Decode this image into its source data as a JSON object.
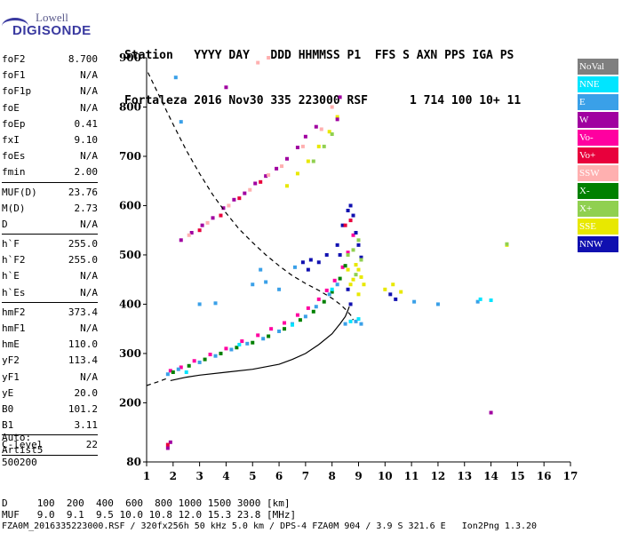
{
  "logo": {
    "line1": "Lowell",
    "line2": "DIGISONDE"
  },
  "header": {
    "labels": [
      "Station",
      "YYYY",
      "DAY",
      "DDD",
      "HHMMSS",
      "P1",
      "FFS",
      "S",
      "AXN",
      "PPS",
      "IGA",
      "PS"
    ],
    "values": [
      "Fortaleza",
      "2016",
      "Nov30",
      "335",
      "223000",
      "RSF",
      "1",
      "714",
      "100",
      "10+",
      "11"
    ]
  },
  "params": {
    "group1": [
      {
        "name": "foF2",
        "value": "8.700"
      },
      {
        "name": "foF1",
        "value": "N/A"
      },
      {
        "name": "foF1p",
        "value": "N/A"
      },
      {
        "name": "foE",
        "value": "N/A"
      },
      {
        "name": "foEp",
        "value": "0.41"
      },
      {
        "name": "fxI",
        "value": "9.10"
      },
      {
        "name": "foEs",
        "value": "N/A"
      },
      {
        "name": "fmin",
        "value": "2.00"
      }
    ],
    "group2": [
      {
        "name": "MUF(D)",
        "value": "23.76"
      },
      {
        "name": "M(D)",
        "value": "2.73"
      },
      {
        "name": "D",
        "value": "N/A"
      }
    ],
    "group3": [
      {
        "name": "h`F",
        "value": "255.0"
      },
      {
        "name": "h`F2",
        "value": "255.0"
      },
      {
        "name": "h`E",
        "value": "N/A"
      },
      {
        "name": "h`Es",
        "value": "N/A"
      }
    ],
    "group4": [
      {
        "name": "hmF2",
        "value": "373.4"
      },
      {
        "name": "hmF1",
        "value": "N/A"
      },
      {
        "name": "hmE",
        "value": "110.0"
      },
      {
        "name": "yF2",
        "value": "113.4"
      },
      {
        "name": "yF1",
        "value": "N/A"
      },
      {
        "name": "yE",
        "value": "20.0"
      },
      {
        "name": "B0",
        "value": "101.2"
      },
      {
        "name": "B1",
        "value": "3.11"
      }
    ],
    "group5": [
      {
        "name": "C-level",
        "value": "22"
      }
    ]
  },
  "auto": {
    "line1": "Auto:",
    "line2": "Artist5",
    "line3": "500200"
  },
  "legend": [
    {
      "label": "NoVal",
      "color": "#7f7f7f"
    },
    {
      "label": "NNE",
      "color": "#00e5ff"
    },
    {
      "label": "E",
      "color": "#3aa0e8"
    },
    {
      "label": "W",
      "color": "#a000a0"
    },
    {
      "label": "Vo-",
      "color": "#ff00a0"
    },
    {
      "label": "Vo+",
      "color": "#e8003c"
    },
    {
      "label": "SSW",
      "color": "#ffb0b0"
    },
    {
      "label": "X-",
      "color": "#008000"
    },
    {
      "label": "X+",
      "color": "#90d050"
    },
    {
      "label": "SSE",
      "color": "#e8e800"
    },
    {
      "label": "NNW",
      "color": "#1010b0"
    }
  ],
  "footer": {
    "line1": "D     100  200  400  600  800 1000 1500 3000 [km]",
    "line2": "MUF   9.0  9.1  9.5 10.0 10.8 12.0 15.3 23.8 [MHz]",
    "line3": "FZA0M_2016335223000.RSF / 320fx256h 50 kHz 5.0 km / DPS-4 FZA0M 904 / 3.9 S 321.6 E   Ion2Png 1.3.20"
  },
  "chart_data": {
    "type": "scatter",
    "title": "",
    "xlabel": "",
    "ylabel": "",
    "xlim": [
      1,
      17
    ],
    "ylim": [
      80,
      900
    ],
    "x_ticks": [
      1,
      2,
      3,
      4,
      5,
      6,
      7,
      8,
      9,
      10,
      11,
      12,
      13,
      14,
      15,
      16,
      17
    ],
    "y_ticks": [
      80,
      200,
      300,
      400,
      500,
      600,
      700,
      800,
      900
    ],
    "grid": false,
    "legend_position": "right",
    "series": [
      {
        "color": "#ff00a0",
        "points": [
          [
            1.9,
            265
          ],
          [
            2.3,
            272
          ],
          [
            2.8,
            285
          ],
          [
            3.4,
            298
          ],
          [
            4.0,
            310
          ],
          [
            4.6,
            325
          ],
          [
            5.2,
            337
          ],
          [
            5.7,
            350
          ],
          [
            6.2,
            362
          ],
          [
            6.7,
            378
          ],
          [
            7.1,
            392
          ],
          [
            7.5,
            410
          ],
          [
            7.8,
            428
          ],
          [
            8.1,
            448
          ],
          [
            8.4,
            475
          ],
          [
            8.6,
            505
          ],
          [
            8.8,
            540
          ]
        ]
      },
      {
        "color": "#008000",
        "points": [
          [
            2.0,
            262
          ],
          [
            2.6,
            275
          ],
          [
            3.2,
            288
          ],
          [
            3.8,
            300
          ],
          [
            4.4,
            312
          ],
          [
            5.0,
            322
          ],
          [
            5.6,
            335
          ],
          [
            6.2,
            350
          ],
          [
            6.8,
            368
          ],
          [
            7.3,
            385
          ],
          [
            7.7,
            405
          ],
          [
            8.0,
            425
          ],
          [
            8.3,
            452
          ],
          [
            8.5,
            478
          ]
        ]
      },
      {
        "color": "#3aa0e8",
        "points": [
          [
            1.8,
            258
          ],
          [
            2.2,
            268
          ],
          [
            3.0,
            282
          ],
          [
            3.6,
            295
          ],
          [
            4.2,
            308
          ],
          [
            4.8,
            320
          ],
          [
            5.4,
            330
          ],
          [
            6.0,
            345
          ],
          [
            6.5,
            360
          ],
          [
            7.0,
            375
          ],
          [
            7.4,
            395
          ],
          [
            7.9,
            420
          ],
          [
            8.2,
            440
          ],
          [
            8.5,
            360
          ],
          [
            8.9,
            365
          ],
          [
            9.1,
            360
          ],
          [
            3.0,
            400
          ],
          [
            3.6,
            402
          ],
          [
            5.0,
            440
          ],
          [
            5.5,
            445
          ],
          [
            6.0,
            430
          ],
          [
            5.3,
            470
          ],
          [
            6.6,
            475
          ],
          [
            11.1,
            405
          ],
          [
            12.0,
            400
          ],
          [
            13.5,
            405
          ],
          [
            2.1,
            860
          ],
          [
            2.3,
            770
          ]
        ]
      },
      {
        "color": "#00e5ff",
        "points": [
          [
            2.5,
            262
          ],
          [
            4.5,
            318
          ],
          [
            6.5,
            358
          ],
          [
            8.0,
            430
          ],
          [
            8.7,
            365
          ],
          [
            9.0,
            370
          ],
          [
            13.6,
            410
          ],
          [
            14.0,
            408
          ]
        ]
      },
      {
        "color": "#1010b0",
        "points": [
          [
            7.2,
            490
          ],
          [
            7.5,
            485
          ],
          [
            7.8,
            500
          ],
          [
            8.2,
            520
          ],
          [
            8.4,
            560
          ],
          [
            8.6,
            590
          ],
          [
            8.7,
            600
          ],
          [
            8.8,
            580
          ],
          [
            8.9,
            545
          ],
          [
            9.0,
            520
          ],
          [
            9.1,
            495
          ],
          [
            8.3,
            500
          ],
          [
            6.9,
            485
          ],
          [
            7.1,
            470
          ],
          [
            8.6,
            430
          ],
          [
            8.7,
            400
          ],
          [
            10.2,
            420
          ],
          [
            10.4,
            410
          ]
        ]
      },
      {
        "color": "#e8e800",
        "points": [
          [
            8.6,
            470
          ],
          [
            8.7,
            440
          ],
          [
            8.8,
            450
          ],
          [
            8.9,
            480
          ],
          [
            9.0,
            470
          ],
          [
            9.1,
            455
          ],
          [
            9.2,
            440
          ],
          [
            9.0,
            420
          ],
          [
            10.0,
            430
          ],
          [
            10.3,
            440
          ],
          [
            10.6,
            425
          ],
          [
            14.6,
            520
          ],
          [
            6.3,
            640
          ],
          [
            6.7,
            665
          ],
          [
            7.1,
            690
          ],
          [
            7.5,
            720
          ],
          [
            7.9,
            750
          ],
          [
            8.2,
            780
          ]
        ]
      },
      {
        "color": "#90d050",
        "points": [
          [
            8.6,
            500
          ],
          [
            8.8,
            510
          ],
          [
            9.0,
            530
          ],
          [
            9.1,
            490
          ],
          [
            8.9,
            460
          ],
          [
            7.3,
            690
          ],
          [
            7.7,
            720
          ],
          [
            8.0,
            745
          ],
          [
            14.6,
            522
          ]
        ]
      },
      {
        "color": "#a000a0",
        "points": [
          [
            2.3,
            530
          ],
          [
            2.7,
            545
          ],
          [
            3.1,
            560
          ],
          [
            3.5,
            575
          ],
          [
            3.9,
            595
          ],
          [
            4.3,
            612
          ],
          [
            4.7,
            625
          ],
          [
            5.1,
            645
          ],
          [
            5.5,
            660
          ],
          [
            5.9,
            675
          ],
          [
            6.3,
            695
          ],
          [
            6.7,
            718
          ],
          [
            7.0,
            740
          ],
          [
            7.4,
            760
          ],
          [
            8.2,
            775
          ],
          [
            8.3,
            820
          ],
          [
            4.0,
            840
          ],
          [
            1.9,
            120
          ],
          [
            1.8,
            108
          ],
          [
            14.0,
            180
          ]
        ]
      },
      {
        "color": "#ffb0b0",
        "points": [
          [
            2.6,
            540
          ],
          [
            3.3,
            565
          ],
          [
            4.1,
            600
          ],
          [
            4.9,
            632
          ],
          [
            5.6,
            662
          ],
          [
            6.1,
            680
          ],
          [
            6.9,
            720
          ],
          [
            7.6,
            755
          ],
          [
            8.0,
            800
          ],
          [
            5.2,
            890
          ],
          [
            5.6,
            900
          ]
        ]
      },
      {
        "color": "#e8003c",
        "points": [
          [
            3.0,
            550
          ],
          [
            3.8,
            580
          ],
          [
            4.5,
            615
          ],
          [
            5.3,
            648
          ],
          [
            8.5,
            560
          ],
          [
            8.7,
            570
          ],
          [
            1.8,
            115
          ]
        ]
      }
    ],
    "lines": [
      {
        "style": "dashed",
        "points": [
          [
            1.05,
            870
          ],
          [
            1.5,
            820
          ],
          [
            2.0,
            765
          ],
          [
            2.5,
            712
          ],
          [
            3.0,
            665
          ],
          [
            3.5,
            622
          ],
          [
            4.0,
            585
          ],
          [
            4.5,
            552
          ],
          [
            5.0,
            525
          ],
          [
            5.5,
            500
          ],
          [
            6.0,
            478
          ],
          [
            6.5,
            458
          ],
          [
            7.0,
            442
          ],
          [
            7.5,
            428
          ],
          [
            8.0,
            412
          ],
          [
            8.3,
            400
          ],
          [
            8.5,
            390
          ],
          [
            8.7,
            378
          ],
          [
            8.8,
            368
          ]
        ]
      },
      {
        "style": "dashed",
        "points": [
          [
            1.0,
            235
          ],
          [
            1.4,
            242
          ],
          [
            1.8,
            250
          ]
        ]
      },
      {
        "style": "solid",
        "points": [
          [
            1.9,
            245
          ],
          [
            2.5,
            252
          ],
          [
            3.0,
            256
          ],
          [
            4.0,
            262
          ],
          [
            5.0,
            268
          ],
          [
            6.0,
            278
          ],
          [
            6.5,
            288
          ],
          [
            7.0,
            300
          ],
          [
            7.5,
            318
          ],
          [
            8.0,
            340
          ],
          [
            8.3,
            360
          ],
          [
            8.5,
            375
          ],
          [
            8.6,
            388
          ],
          [
            8.65,
            395
          ]
        ]
      }
    ]
  }
}
